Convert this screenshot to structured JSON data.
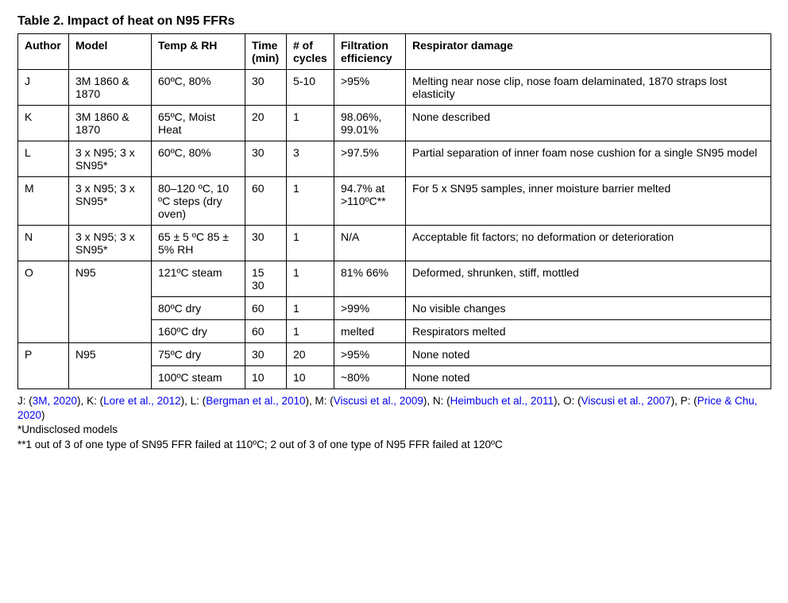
{
  "table": {
    "caption": "Table 2. Impact of heat on N95 FFRs",
    "columns": [
      "Author",
      "Model",
      "Temp & RH",
      "Time (min)",
      "# of cycles",
      "Filtration efficiency",
      "Respirator damage"
    ],
    "rows": {
      "J": {
        "author": "J",
        "model": "3M 1860 & 1870",
        "temp": "60ºC, 80%",
        "time": "30",
        "cycles": "5-10",
        "filt": ">95%",
        "damage": "Melting near nose clip, nose foam delaminated, 1870 straps lost elasticity"
      },
      "K": {
        "author": "K",
        "model": "3M 1860 & 1870",
        "temp": "65ºC, Moist Heat",
        "time": "20",
        "cycles": "1",
        "filt": "98.06%, 99.01%",
        "damage": "None described"
      },
      "L": {
        "author": "L",
        "model": "3 x N95;\n3 x SN95*",
        "temp": "60ºC, 80%",
        "time": "30",
        "cycles": "3",
        "filt": ">97.5%",
        "damage": "Partial separation of inner foam nose cushion for a single SN95 model"
      },
      "M": {
        "author": "M",
        "model": "3 x N95;\n3 x SN95*",
        "temp": "80–120 ºC, 10 ºC steps (dry oven)",
        "time": "60",
        "cycles": "1",
        "filt": "94.7% at >110ºC**",
        "damage": "For 5 x SN95 samples, inner moisture barrier melted"
      },
      "N": {
        "author": "N",
        "model": "3 x N95;\n3 x SN95*",
        "temp": "65 ± 5 ºC\n85 ± 5% RH",
        "time": "30",
        "cycles": "1",
        "filt": "N/A",
        "damage": "Acceptable fit factors; no deformation or deterioration"
      },
      "O": {
        "author": "O",
        "model": "N95",
        "sub": [
          {
            "temp": "121ºC steam",
            "time": "15\n30",
            "cycles": "1",
            "filt": "81%\n66%",
            "damage": "Deformed, shrunken, stiff, mottled"
          },
          {
            "temp": "80ºC dry",
            "time": "60",
            "cycles": "1",
            "filt": ">99%",
            "damage": "No visible changes"
          },
          {
            "temp": "160ºC dry",
            "time": "60",
            "cycles": "1",
            "filt": "melted",
            "damage": "Respirators melted"
          }
        ]
      },
      "P": {
        "author": "P",
        "model": "N95",
        "sub": [
          {
            "temp": "75ºC dry",
            "time": "30",
            "cycles": "20",
            "filt": ">95%",
            "damage": "None noted"
          },
          {
            "temp": "100ºC steam",
            "time": "10",
            "cycles": "10",
            "filt": "~80%",
            "damage": "None noted"
          }
        ]
      }
    }
  },
  "footnotes": {
    "refs": [
      {
        "key": "J",
        "cite": "3M, 2020"
      },
      {
        "key": "K",
        "cite": "Lore et al., 2012"
      },
      {
        "key": "L",
        "cite": "Bergman et al., 2010"
      },
      {
        "key": "M",
        "cite": "Viscusi et al., 2009"
      },
      {
        "key": "N",
        "cite": "Heimbuch et al., 2011"
      },
      {
        "key": "O",
        "cite": "Viscusi et al., 2007"
      },
      {
        "key": "P",
        "cite": "Price & Chu, 2020"
      }
    ],
    "note1": "*Undisclosed models",
    "note2": "**1 out of 3 of one type of SN95 FFR failed at 110ºC; 2 out of 3 of one type of N95 FFR failed at 120ºC"
  }
}
